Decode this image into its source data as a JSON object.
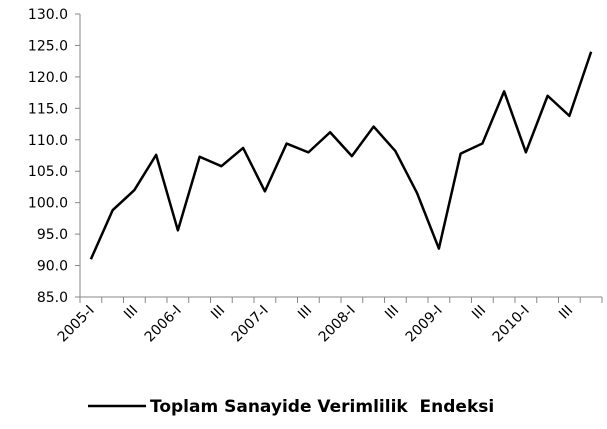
{
  "chart_data": {
    "type": "line",
    "categories": [
      "2005-I",
      null,
      "III",
      null,
      "2006-I",
      null,
      "III",
      null,
      "2007-I",
      null,
      "III",
      null,
      "2008-I",
      null,
      "III",
      null,
      "2009-I",
      null,
      "III",
      null,
      "2010-I",
      null,
      "III",
      null
    ],
    "series": [
      {
        "name": "Toplam Sanayide Verimlilik  Endeksi",
        "color": "#000000",
        "values": [
          91.0,
          98.8,
          102.0,
          107.6,
          95.6,
          107.3,
          105.8,
          108.7,
          101.8,
          109.4,
          108.0,
          111.2,
          107.4,
          112.1,
          108.2,
          101.5,
          92.7,
          107.8,
          109.4,
          117.7,
          108.0,
          117.0,
          113.8,
          124.0
        ]
      }
    ],
    "ylim": [
      85,
      130
    ],
    "yticks": [
      {
        "value": 85,
        "label": "85.0"
      },
      {
        "value": 90,
        "label": "90.0"
      },
      {
        "value": 95,
        "label": "95.0"
      },
      {
        "value": 100,
        "label": "100.0"
      },
      {
        "value": 105,
        "label": "105.0"
      },
      {
        "value": 110,
        "label": "110.0"
      },
      {
        "value": 115,
        "label": "115.0"
      },
      {
        "value": 120,
        "label": "120.0"
      },
      {
        "value": 125,
        "label": "125.0"
      },
      {
        "value": 130,
        "label": "130.0"
      }
    ],
    "grid": false,
    "legend": "bottom"
  }
}
